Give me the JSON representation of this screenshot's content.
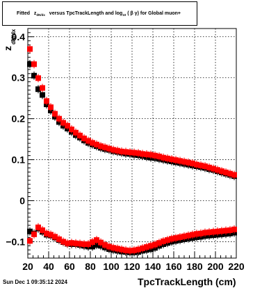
{
  "title": {
    "prefix": "Fitted",
    "z": "z",
    "z_sub": "dN/dx",
    "mid": "versus TpcTrackLength and log",
    "log_sub": "10",
    "bg": "( β γ)",
    "suffix": "for Global muon+"
  },
  "footer": {
    "date": "Sun Dec  1 09:35:12 2024"
  },
  "colors": {
    "series_black": "#000000",
    "series_red": "#ff0000",
    "grid": "#000000"
  },
  "chart_data": {
    "type": "scatter",
    "xlabel": "TpcTrackLength (cm)",
    "ylabel": "z",
    "ylabel_sub": "dN/dx",
    "xlim": [
      20,
      220
    ],
    "ylim": [
      -0.14,
      0.42
    ],
    "xticks": [
      20,
      40,
      60,
      80,
      100,
      120,
      140,
      160,
      180,
      200,
      220
    ],
    "yticks": [
      -0.1,
      0,
      0.1,
      0.2,
      0.3,
      0.4
    ],
    "ytick_labels": [
      "−0.1",
      "0",
      "0.1",
      "0.2",
      "0.3",
      "0.4"
    ],
    "grid": true,
    "series": [
      {
        "color": "#000000",
        "upper_x": [
          22,
          26,
          30,
          34,
          38,
          42,
          46,
          50,
          54,
          58,
          62,
          66,
          70,
          74,
          78,
          82,
          86,
          90,
          94,
          98,
          102,
          106,
          110,
          114,
          118,
          122,
          126,
          130,
          134,
          138,
          142,
          146,
          150,
          154,
          158,
          162,
          166,
          170,
          174,
          178,
          182,
          186,
          190,
          194,
          198,
          202,
          206,
          210,
          214,
          218
        ],
        "upper_y": [
          0.333,
          0.305,
          0.272,
          0.258,
          0.235,
          0.22,
          0.205,
          0.192,
          0.183,
          0.176,
          0.168,
          0.16,
          0.154,
          0.147,
          0.141,
          0.137,
          0.133,
          0.129,
          0.126,
          0.124,
          0.121,
          0.119,
          0.117,
          0.115,
          0.114,
          0.112,
          0.111,
          0.109,
          0.107,
          0.105,
          0.104,
          0.102,
          0.1,
          0.098,
          0.096,
          0.094,
          0.092,
          0.09,
          0.088,
          0.086,
          0.084,
          0.082,
          0.08,
          0.077,
          0.075,
          0.072,
          0.069,
          0.066,
          0.063,
          0.06
        ],
        "lower_x": [
          22,
          26,
          30,
          34,
          38,
          42,
          46,
          50,
          54,
          58,
          62,
          66,
          70,
          74,
          78,
          82,
          86,
          90,
          94,
          98,
          102,
          106,
          110,
          114,
          118,
          122,
          126,
          130,
          134,
          138,
          142,
          146,
          150,
          154,
          158,
          162,
          166,
          170,
          174,
          178,
          182,
          186,
          190,
          194,
          198,
          202,
          206,
          210,
          214,
          218
        ],
        "lower_y": [
          -0.075,
          -0.08,
          -0.068,
          -0.076,
          -0.083,
          -0.085,
          -0.09,
          -0.096,
          -0.101,
          -0.105,
          -0.106,
          -0.106,
          -0.108,
          -0.11,
          -0.112,
          -0.112,
          -0.108,
          -0.11,
          -0.114,
          -0.118,
          -0.12,
          -0.122,
          -0.124,
          -0.125,
          -0.126,
          -0.126,
          -0.125,
          -0.122,
          -0.12,
          -0.118,
          -0.115,
          -0.11,
          -0.106,
          -0.103,
          -0.1,
          -0.098,
          -0.096,
          -0.094,
          -0.092,
          -0.091,
          -0.089,
          -0.088,
          -0.086,
          -0.085,
          -0.084,
          -0.083,
          -0.082,
          -0.081,
          -0.08,
          -0.078
        ]
      },
      {
        "color": "#ff0000",
        "upper_x": [
          22,
          26,
          30,
          34,
          38,
          42,
          46,
          50,
          54,
          58,
          62,
          66,
          70,
          74,
          78,
          82,
          86,
          90,
          94,
          98,
          102,
          106,
          110,
          114,
          118,
          122,
          126,
          130,
          134,
          138,
          142,
          146,
          150,
          154,
          158,
          162,
          166,
          170,
          174,
          178,
          182,
          186,
          190,
          194,
          198,
          202,
          206,
          210,
          214,
          218
        ],
        "upper_y": [
          0.37,
          0.333,
          0.299,
          0.275,
          0.243,
          0.228,
          0.212,
          0.2,
          0.19,
          0.183,
          0.174,
          0.166,
          0.159,
          0.152,
          0.146,
          0.141,
          0.137,
          0.133,
          0.13,
          0.127,
          0.124,
          0.122,
          0.12,
          0.119,
          0.118,
          0.117,
          0.116,
          0.114,
          0.113,
          0.112,
          0.11,
          0.108,
          0.105,
          0.103,
          0.101,
          0.099,
          0.097,
          0.095,
          0.093,
          0.091,
          0.088,
          0.086,
          0.084,
          0.081,
          0.078,
          0.075,
          0.072,
          0.069,
          0.066,
          0.063
        ],
        "lower_x": [
          22,
          26,
          30,
          34,
          38,
          42,
          46,
          50,
          54,
          58,
          62,
          66,
          70,
          74,
          78,
          82,
          86,
          90,
          94,
          98,
          102,
          106,
          110,
          114,
          118,
          122,
          126,
          130,
          134,
          138,
          142,
          146,
          150,
          154,
          158,
          162,
          166,
          170,
          174,
          178,
          182,
          186,
          190,
          194,
          198,
          202,
          206,
          210,
          214,
          218
        ],
        "lower_y": [
          -0.098,
          -0.082,
          -0.065,
          -0.072,
          -0.08,
          -0.083,
          -0.088,
          -0.094,
          -0.1,
          -0.104,
          -0.103,
          -0.104,
          -0.105,
          -0.106,
          -0.106,
          -0.101,
          -0.096,
          -0.102,
          -0.108,
          -0.112,
          -0.115,
          -0.117,
          -0.119,
          -0.121,
          -0.122,
          -0.121,
          -0.119,
          -0.116,
          -0.113,
          -0.11,
          -0.107,
          -0.103,
          -0.099,
          -0.096,
          -0.093,
          -0.091,
          -0.089,
          -0.087,
          -0.085,
          -0.083,
          -0.081,
          -0.08,
          -0.078,
          -0.077,
          -0.076,
          -0.075,
          -0.074,
          -0.073,
          -0.072,
          -0.07
        ]
      }
    ]
  }
}
